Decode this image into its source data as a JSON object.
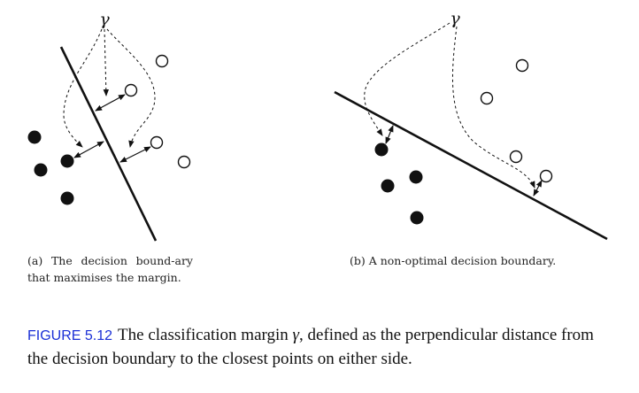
{
  "panel_a": {
    "gamma_label": "γ",
    "caption": "(a) The decision bound-ary that maximises the margin."
  },
  "panel_b": {
    "gamma_label": "γ",
    "caption": "(b) A non-optimal decision boundary."
  },
  "figure": {
    "label": "FIGURE 5.12",
    "caption_before": "The classification margin ",
    "caption_symbol": "γ",
    "caption_after": ", defined as the perpendicular distance from the decision boundary to the closest points on either side."
  },
  "colors": {
    "ink": "#111111",
    "figure_label": "#1a2fd6"
  }
}
